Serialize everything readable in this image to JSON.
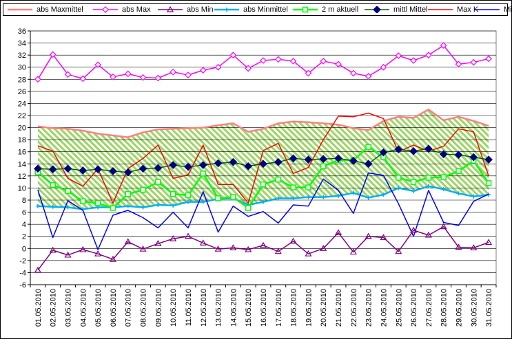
{
  "chart_data": {
    "type": "line",
    "title": "",
    "xlabel": "",
    "ylabel": "",
    "ylim": [
      -6,
      36
    ],
    "yticks": [
      -6,
      -4,
      -2,
      0,
      2,
      4,
      6,
      8,
      10,
      12,
      14,
      16,
      18,
      20,
      22,
      24,
      26,
      28,
      30,
      32,
      34,
      36
    ],
    "grid": true,
    "legend_position": "top",
    "categories": [
      "01.05.2010",
      "02.05.2010",
      "03.05.2010",
      "04.05.2010",
      "05.05.2010",
      "06.05.2010",
      "07.05.2010",
      "08.05.2010",
      "09.05.2010",
      "10.05.2010",
      "11.05.2010",
      "12.05.2010",
      "13.05.2010",
      "14.05.2010",
      "15.05.2010",
      "16.05.2010",
      "17.05.2010",
      "18.05.2010",
      "19.05.2010",
      "20.05.2010",
      "21.05.2010",
      "22.05.2010",
      "23.05.2010",
      "24.05.2010",
      "25.05.2010",
      "26.05.2010",
      "27.05.2010",
      "28.05.2010",
      "29.05.2010",
      "30.05.2010",
      "31.05.2010"
    ],
    "series": [
      {
        "name": "abs Maxmittel",
        "color": "#ff8080",
        "marker": "none",
        "values": [
          20.2,
          19.9,
          19.8,
          19.5,
          19.0,
          18.7,
          18.4,
          19.2,
          19.7,
          19.8,
          19.9,
          20.0,
          20.4,
          20.7,
          19.3,
          19.8,
          20.7,
          21.0,
          20.9,
          20.7,
          20.5,
          19.9,
          19.6,
          21.1,
          21.8,
          21.6,
          23.0,
          21.2,
          21.8,
          21.1,
          20.3
        ]
      },
      {
        "name": "abs Max",
        "color": "#ff00ff",
        "marker": "diamond-open",
        "values": [
          28.0,
          32.1,
          28.8,
          28.1,
          30.4,
          28.4,
          28.9,
          28.3,
          28.2,
          29.2,
          28.7,
          29.5,
          30.0,
          32.0,
          29.8,
          31.1,
          31.3,
          31.0,
          29.0,
          31.0,
          30.5,
          29.0,
          28.5,
          30.0,
          31.9,
          31.1,
          32.0,
          33.6,
          30.5,
          30.8,
          31.4
        ]
      },
      {
        "name": "abs Min",
        "color": "#800080",
        "marker": "triangle-open",
        "values": [
          -3.6,
          -0.3,
          -1.1,
          -0.2,
          -0.9,
          -1.8,
          1.1,
          -0.1,
          0.8,
          1.6,
          2.0,
          0.9,
          -0.1,
          0.1,
          -0.2,
          0.5,
          -0.5,
          1.2,
          -0.9,
          0.0,
          2.6,
          -0.6,
          2.0,
          1.8,
          -0.5,
          3.0,
          2.2,
          3.6,
          0.2,
          0.1,
          1.0
        ]
      },
      {
        "name": "abs Minmittel",
        "color": "#00b0f0",
        "marker": "star",
        "values": [
          7.0,
          6.9,
          6.8,
          6.5,
          6.8,
          6.8,
          7.0,
          6.8,
          7.2,
          7.1,
          7.7,
          7.7,
          8.2,
          8.3,
          7.2,
          7.7,
          8.3,
          8.3,
          8.5,
          8.5,
          8.7,
          9.2,
          8.4,
          8.9,
          10.0,
          9.5,
          10.3,
          9.8,
          9.1,
          8.6,
          8.9
        ]
      },
      {
        "name": "2 m aktuell",
        "color": "#00ff00",
        "marker": "square-open",
        "values": [
          12.6,
          10.5,
          9.5,
          7.8,
          7.5,
          6.7,
          9.0,
          9.7,
          11.0,
          9.0,
          8.8,
          12.4,
          8.3,
          8.5,
          6.7,
          10.6,
          11.4,
          10.1,
          10.1,
          13.6,
          14.6,
          14.6,
          16.8,
          15.1,
          11.7,
          11.0,
          11.7,
          11.8,
          12.8,
          14.5,
          10.8
        ]
      },
      {
        "name": "mittl Mittel",
        "color": "#006400",
        "marker": "diamond",
        "values": [
          13.2,
          13.1,
          13.2,
          12.9,
          13.1,
          12.8,
          12.6,
          13.2,
          13.3,
          13.8,
          13.5,
          13.8,
          14.1,
          14.3,
          13.6,
          14.0,
          14.3,
          14.9,
          14.7,
          14.8,
          14.9,
          14.5,
          14.0,
          15.9,
          16.4,
          16.1,
          16.5,
          15.6,
          15.5,
          15.1,
          14.7
        ]
      },
      {
        "name": "Max K",
        "color": "#ff0000",
        "marker": "none",
        "values": [
          17.0,
          16.1,
          11.6,
          10.3,
          13.2,
          7.5,
          13.2,
          14.9,
          17.1,
          11.6,
          12.2,
          17.1,
          10.6,
          10.6,
          7.5,
          16.2,
          17.4,
          12.4,
          13.4,
          18.0,
          21.9,
          21.8,
          22.4,
          21.5,
          16.0,
          17.1,
          16.1,
          16.9,
          19.8,
          19.3,
          12.0
        ]
      },
      {
        "name": "Min K",
        "color": "#0000ff",
        "marker": "none",
        "values": [
          9.7,
          1.8,
          7.9,
          6.3,
          -0.2,
          5.5,
          6.3,
          5.1,
          3.4,
          6.0,
          3.4,
          9.4,
          2.7,
          7.0,
          5.3,
          6.1,
          4.2,
          7.2,
          7.0,
          11.5,
          9.6,
          5.8,
          12.5,
          12.1,
          7.4,
          2.0,
          9.6,
          4.3,
          3.8,
          7.8,
          9.0
        ]
      }
    ]
  }
}
